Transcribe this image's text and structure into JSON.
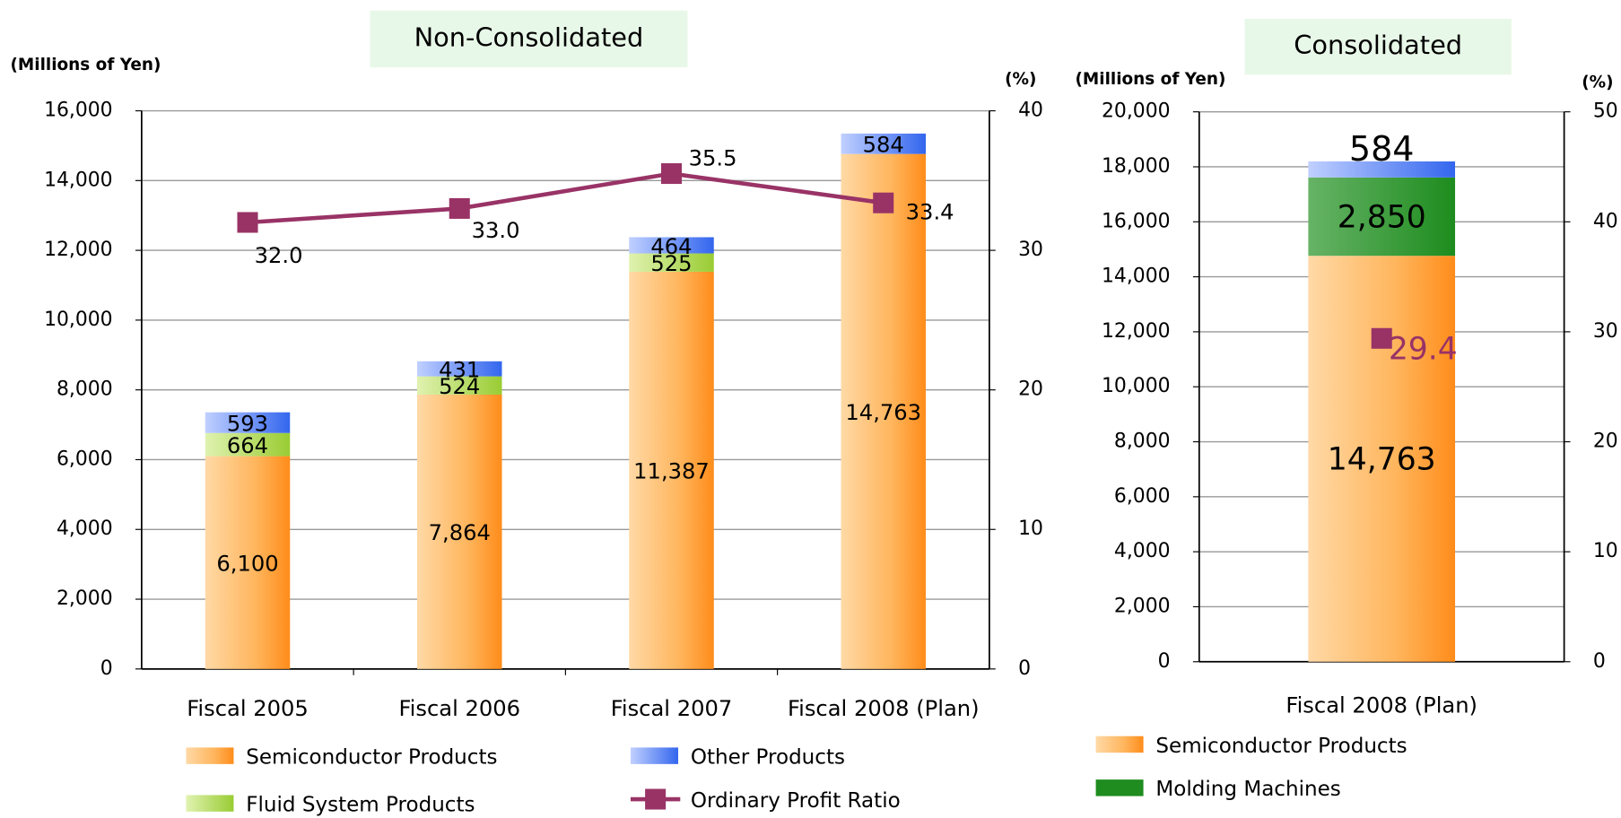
{
  "chart_data": [
    {
      "type": "bar",
      "stacked": true,
      "title": "Non-Consolidated",
      "y_label": "(Millions of Yen)",
      "y2_label": "(%)",
      "categories": [
        "Fiscal 2005",
        "Fiscal 2006",
        "Fiscal 2007",
        "Fiscal 2008 (Plan)"
      ],
      "series": [
        {
          "name": "Semiconductor Products",
          "color": "#ff8c1a",
          "values": [
            6100,
            7864,
            11387,
            14763
          ],
          "value_labels": [
            "6,100",
            "7,864",
            "11,387",
            "14,763"
          ]
        },
        {
          "name": "Fluid System Products",
          "color": "#99cc33",
          "values": [
            664,
            524,
            525,
            null
          ],
          "value_labels": [
            "664",
            "524",
            "525",
            null
          ]
        },
        {
          "name": "Other Products",
          "color": "#3366ee",
          "values": [
            593,
            431,
            464,
            584
          ],
          "value_labels": [
            "593",
            "431",
            "464",
            "584"
          ]
        },
        {
          "name": "Ordinary Profit Ratio",
          "type": "line",
          "axis": "y2",
          "color": "#993366",
          "values": [
            32.0,
            33.0,
            35.5,
            33.4
          ],
          "value_labels": [
            "32.0",
            "33.0",
            "35.5",
            "33.4"
          ]
        }
      ],
      "ylim": [
        0,
        16000
      ],
      "yticks": [
        0,
        {
          "value": 2000,
          "label": "2,000"
        },
        {
          "value": 4000,
          "label": "4,000"
        },
        {
          "value": 6000,
          "label": "6,000"
        },
        {
          "value": 8000,
          "label": "8,000"
        },
        {
          "value": 10000,
          "label": "10,000"
        },
        {
          "value": 12000,
          "label": "12,000"
        },
        {
          "value": 14000,
          "label": "14,000"
        },
        {
          "value": 16000,
          "label": "16,000"
        }
      ],
      "y2lim": [
        0,
        40
      ],
      "y2ticks": [
        0,
        10,
        20,
        30,
        40
      ],
      "grid": true
    },
    {
      "type": "bar",
      "stacked": true,
      "title": "Consolidated",
      "y_label": "(Millions of Yen)",
      "y2_label": "(%)",
      "categories": [
        "Fiscal 2008 (Plan)"
      ],
      "series": [
        {
          "name": "Semiconductor Products",
          "color": "#ff8c1a",
          "values": [
            14763
          ],
          "value_labels": [
            "14,763"
          ]
        },
        {
          "name": "Molding Machines",
          "color": "#1e8c1e",
          "values": [
            2850
          ],
          "value_labels": [
            "2,850"
          ]
        },
        {
          "name": "Other Products",
          "color": "#3366ee",
          "values": [
            584
          ]
        },
        {
          "type": "line",
          "axis": "y2",
          "color": "#993366",
          "values": [
            29.4
          ]
        }
      ],
      "ylim": [
        0,
        20000
      ],
      "yticks": [
        0,
        {
          "value": 2000,
          "label": "2,000"
        },
        {
          "value": 4000,
          "label": "4,000"
        },
        {
          "value": 6000,
          "label": "6,000"
        },
        {
          "value": 8000,
          "label": "8,000"
        },
        {
          "value": 10000,
          "label": "10,000"
        },
        {
          "value": 12000,
          "label": "12,000"
        },
        {
          "value": 14000,
          "label": "14,000"
        },
        {
          "value": 16000,
          "label": "16,000"
        },
        {
          "value": 18000,
          "label": "18,000"
        },
        {
          "value": 20000,
          "label": "20,000"
        }
      ],
      "y2lim": [
        0,
        50
      ],
      "y2ticks": [
        0,
        10,
        20,
        30,
        40,
        50
      ],
      "grid": true
    }
  ]
}
